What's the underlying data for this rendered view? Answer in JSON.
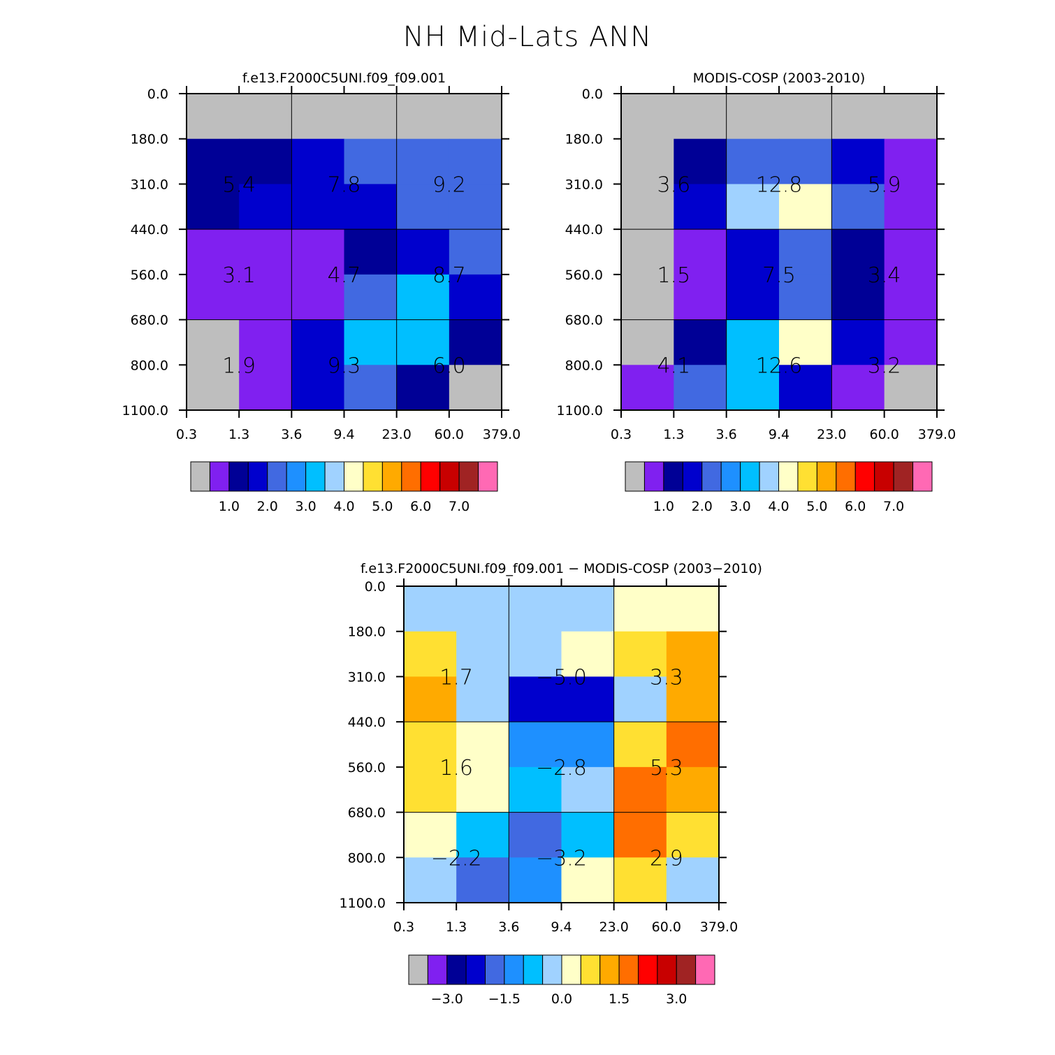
{
  "page": {
    "title": "NH Mid-Lats ANN"
  },
  "chart_data": [
    {
      "type": "heatmap",
      "name": "model",
      "title": "f.e13.F2000C5UNI.f09_f09.001",
      "x_ticks": [
        "0.3",
        "1.3",
        "3.6",
        "9.4",
        "23.0",
        "60.0",
        "379.0"
      ],
      "y_ticks": [
        "0.0",
        "180.0",
        "310.0",
        "440.0",
        "560.0",
        "680.0",
        "800.0",
        "1100.0"
      ],
      "cells_top_to_bottom": [
        [
          0,
          0,
          0,
          0,
          0,
          0
        ],
        [
          2,
          2,
          3,
          4,
          4,
          4
        ],
        [
          2,
          3,
          3,
          3,
          4,
          4
        ],
        [
          1,
          1,
          1,
          2,
          3,
          4
        ],
        [
          1,
          1,
          1,
          4,
          6,
          3
        ],
        [
          0,
          1,
          3,
          6,
          6,
          2
        ],
        [
          0,
          1,
          3,
          4,
          2,
          0
        ]
      ],
      "block_totals": [
        {
          "col": 0,
          "row": 0,
          "text": "5.4"
        },
        {
          "col": 1,
          "row": 0,
          "text": "7.8"
        },
        {
          "col": 2,
          "row": 0,
          "text": "9.2"
        },
        {
          "col": 0,
          "row": 1,
          "text": "3.1"
        },
        {
          "col": 1,
          "row": 1,
          "text": "4.7"
        },
        {
          "col": 2,
          "row": 1,
          "text": "8.7"
        },
        {
          "col": 0,
          "row": 2,
          "text": "1.9"
        },
        {
          "col": 1,
          "row": 2,
          "text": "9.3"
        },
        {
          "col": 2,
          "row": 2,
          "text": "6.0"
        }
      ],
      "colorbar": {
        "colors": [
          "#bebebe",
          "#8020f0",
          "#000096",
          "#0000cd",
          "#4169e1",
          "#1e90ff",
          "#00bfff",
          "#a0d2ff",
          "#ffffc8",
          "#ffe032",
          "#ffaa00",
          "#ff6e00",
          "#ff0000",
          "#c80000",
          "#a02323",
          "#ff69b4"
        ],
        "labels": [
          "1.0",
          "2.0",
          "3.0",
          "4.0",
          "5.0",
          "6.0",
          "7.0"
        ]
      }
    },
    {
      "type": "heatmap",
      "name": "obs",
      "title": "MODIS-COSP (2003-2010)",
      "x_ticks": [
        "0.3",
        "1.3",
        "3.6",
        "9.4",
        "23.0",
        "60.0",
        "379.0"
      ],
      "y_ticks": [
        "0.0",
        "180.0",
        "310.0",
        "440.0",
        "560.0",
        "680.0",
        "800.0",
        "1100.0"
      ],
      "cells_top_to_bottom": [
        [
          0,
          0,
          0,
          0,
          0,
          0
        ],
        [
          0,
          2,
          4,
          4,
          3,
          1
        ],
        [
          0,
          3,
          7,
          8,
          4,
          1
        ],
        [
          0,
          1,
          3,
          4,
          2,
          1
        ],
        [
          0,
          1,
          3,
          4,
          2,
          1
        ],
        [
          0,
          2,
          6,
          8,
          3,
          1
        ],
        [
          1,
          4,
          6,
          3,
          1,
          0
        ]
      ],
      "block_totals": [
        {
          "col": 0,
          "row": 0,
          "text": "3.6"
        },
        {
          "col": 1,
          "row": 0,
          "text": "12.8"
        },
        {
          "col": 2,
          "row": 0,
          "text": "5.9"
        },
        {
          "col": 0,
          "row": 1,
          "text": "1.5"
        },
        {
          "col": 1,
          "row": 1,
          "text": "7.5"
        },
        {
          "col": 2,
          "row": 1,
          "text": "3.4"
        },
        {
          "col": 0,
          "row": 2,
          "text": "4.1"
        },
        {
          "col": 1,
          "row": 2,
          "text": "12.6"
        },
        {
          "col": 2,
          "row": 2,
          "text": "3.2"
        }
      ],
      "colorbar": {
        "colors": [
          "#bebebe",
          "#8020f0",
          "#000096",
          "#0000cd",
          "#4169e1",
          "#1e90ff",
          "#00bfff",
          "#a0d2ff",
          "#ffffc8",
          "#ffe032",
          "#ffaa00",
          "#ff6e00",
          "#ff0000",
          "#c80000",
          "#a02323",
          "#ff69b4"
        ],
        "labels": [
          "1.0",
          "2.0",
          "3.0",
          "4.0",
          "5.0",
          "6.0",
          "7.0"
        ]
      }
    },
    {
      "type": "heatmap",
      "name": "diff",
      "title": "f.e13.F2000C5UNI.f09_f09.001 − MODIS-COSP (2003−2010)",
      "x_ticks": [
        "0.3",
        "1.3",
        "3.6",
        "9.4",
        "23.0",
        "60.0",
        "379.0"
      ],
      "y_ticks": [
        "0.0",
        "180.0",
        "310.0",
        "440.0",
        "560.0",
        "680.0",
        "800.0",
        "1100.0"
      ],
      "cells_top_to_bottom": [
        [
          7,
          7,
          7,
          7,
          8,
          8
        ],
        [
          9,
          7,
          7,
          8,
          9,
          10
        ],
        [
          10,
          7,
          3,
          3,
          7,
          10
        ],
        [
          9,
          8,
          5,
          5,
          9,
          11
        ],
        [
          9,
          8,
          6,
          7,
          11,
          10
        ],
        [
          8,
          6,
          4,
          6,
          11,
          9
        ],
        [
          7,
          4,
          5,
          8,
          9,
          7
        ]
      ],
      "block_totals": [
        {
          "col": 0,
          "row": 0,
          "text": "1.7"
        },
        {
          "col": 1,
          "row": 0,
          "text": "−5.0"
        },
        {
          "col": 2,
          "row": 0,
          "text": "3.3"
        },
        {
          "col": 0,
          "row": 1,
          "text": "1.6"
        },
        {
          "col": 1,
          "row": 1,
          "text": "−2.8"
        },
        {
          "col": 2,
          "row": 1,
          "text": "5.3"
        },
        {
          "col": 0,
          "row": 2,
          "text": "−2.2"
        },
        {
          "col": 1,
          "row": 2,
          "text": "−3.2"
        },
        {
          "col": 2,
          "row": 2,
          "text": "2.9"
        }
      ],
      "colorbar": {
        "colors": [
          "#bebebe",
          "#8020f0",
          "#000096",
          "#0000cd",
          "#4169e1",
          "#1e90ff",
          "#00bfff",
          "#a0d2ff",
          "#ffffc8",
          "#ffe032",
          "#ffaa00",
          "#ff6e00",
          "#ff0000",
          "#c80000",
          "#a02323",
          "#ff69b4"
        ],
        "labels": [
          "−3.0",
          "−1.5",
          "0.0",
          "1.5",
          "3.0"
        ],
        "label_boundaries": [
          2,
          5,
          8,
          11,
          14
        ]
      }
    }
  ]
}
